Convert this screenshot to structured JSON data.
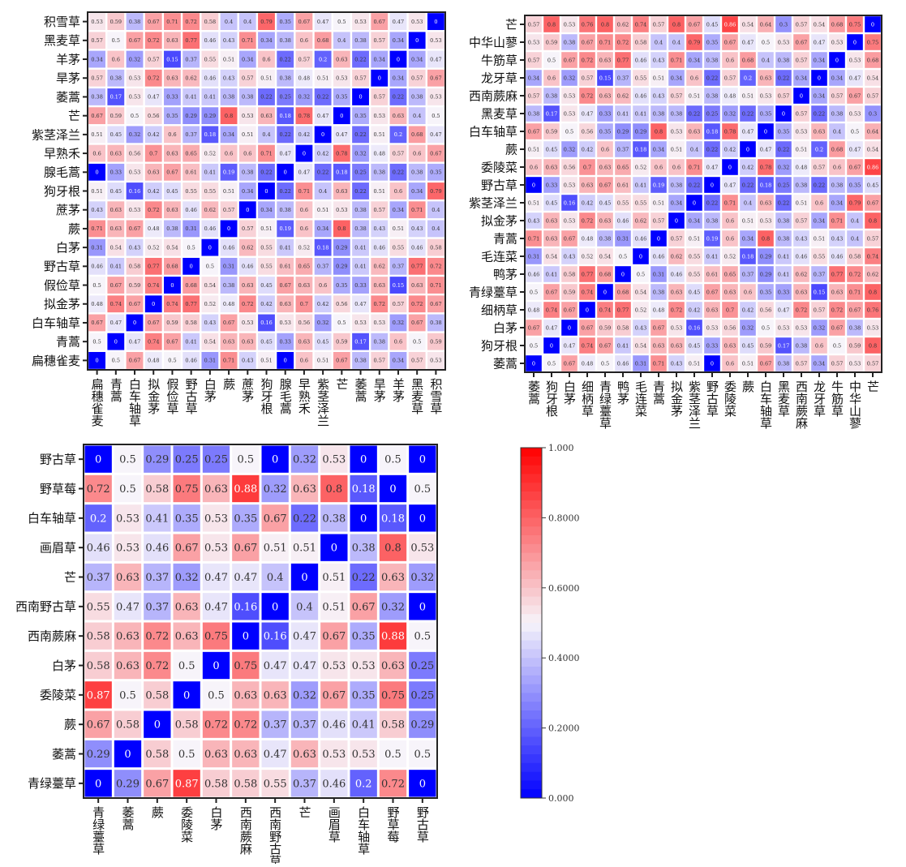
{
  "chart_data": [
    {
      "type": "heatmap",
      "title": "",
      "rows": [
        "积雪草",
        "黑麦草",
        "羊茅",
        "旱茅",
        "萎蒿",
        "芒",
        "紫茎泽兰",
        "早熟禾",
        "腺毛蒿",
        "狗牙根",
        "蔗茅",
        "蕨",
        "白茅",
        "野古草",
        "假俭草",
        "拟金茅",
        "白车轴草",
        "青蒿",
        "扁穗雀麦"
      ],
      "columns": [
        "扁穗雀麦",
        "青蒿",
        "白车轴草",
        "拟金茅",
        "假俭草",
        "野古草",
        "白茅",
        "蕨",
        "蔗茅",
        "狗牙根",
        "腺毛蒿",
        "早熟禾",
        "紫茎泽兰",
        "芒",
        "萎蒿",
        "旱茅",
        "羊茅",
        "黑麦草",
        "积雪草"
      ],
      "values": [
        [
          0.53,
          0.59,
          0.38,
          0.67,
          0.71,
          0.72,
          0.58,
          0.4,
          0.4,
          0.79,
          0.35,
          0.67,
          0.47,
          0.5,
          0.53,
          0.67,
          0.47,
          0.53,
          0
        ],
        [
          0.57,
          0.5,
          0.67,
          0.72,
          0.63,
          0.77,
          0.46,
          0.43,
          0.71,
          0.34,
          0.38,
          0.6,
          0.68,
          0.4,
          0.38,
          0.57,
          0.34,
          0,
          0.53
        ],
        [
          0.34,
          0.6,
          0.32,
          0.57,
          0.15,
          0.37,
          0.55,
          0.51,
          0.34,
          0.6,
          0.22,
          0.57,
          0.2,
          0.63,
          0.22,
          0.34,
          0,
          0.34,
          0.47
        ],
        [
          0.57,
          0.38,
          0.53,
          0.72,
          0.63,
          0.62,
          0.46,
          0.43,
          0.57,
          0.51,
          0.38,
          0.48,
          0.51,
          0.53,
          0.57,
          0,
          0.34,
          0.57,
          0.67
        ],
        [
          0.38,
          0.17,
          0.53,
          0.47,
          0.33,
          0.41,
          0.41,
          0.38,
          0.38,
          0.22,
          0.25,
          0.32,
          0.22,
          0.35,
          0,
          0.57,
          0.22,
          0.38,
          0.53
        ],
        [
          0.67,
          0.59,
          0.5,
          0.56,
          0.35,
          0.29,
          0.29,
          0.8,
          0.53,
          0.63,
          0.18,
          0.78,
          0.47,
          0,
          0.35,
          0.53,
          0.63,
          0.4,
          0.5
        ],
        [
          0.51,
          0.45,
          0.32,
          0.42,
          0.6,
          0.37,
          0.18,
          0.34,
          0.51,
          0.4,
          0.22,
          0.42,
          0,
          0.47,
          0.22,
          0.51,
          0.2,
          0.68,
          0.47
        ],
        [
          0.6,
          0.63,
          0.56,
          0.7,
          0.63,
          0.65,
          0.52,
          0.6,
          0.6,
          0.71,
          0.47,
          0,
          0.42,
          0.78,
          0.32,
          0.48,
          0.57,
          0.6,
          0.67
        ],
        [
          0,
          0.33,
          0.53,
          0.63,
          0.67,
          0.61,
          0.41,
          0.19,
          0.38,
          0.22,
          0,
          0.47,
          0.22,
          0.18,
          0.25,
          0.38,
          0.22,
          0.38,
          0.35
        ],
        [
          0.51,
          0.45,
          0.16,
          0.42,
          0.45,
          0.55,
          0.55,
          0.51,
          0.34,
          0,
          0.22,
          0.71,
          0.4,
          0.63,
          0.22,
          0.51,
          0.6,
          0.34,
          0.79
        ],
        [
          0.43,
          0.63,
          0.53,
          0.72,
          0.63,
          0.46,
          0.62,
          0.57,
          0,
          0.34,
          0.38,
          0.6,
          0.51,
          0.53,
          0.38,
          0.57,
          0.34,
          0.71,
          0.4
        ],
        [
          0.71,
          0.63,
          0.67,
          0.48,
          0.38,
          0.31,
          0.46,
          0,
          0.57,
          0.51,
          0.19,
          0.6,
          0.34,
          0.8,
          0.38,
          0.43,
          0.51,
          0.43,
          0.4
        ],
        [
          0.31,
          0.54,
          0.43,
          0.52,
          0.54,
          0.5,
          0,
          0.46,
          0.62,
          0.55,
          0.41,
          0.52,
          0.18,
          0.29,
          0.41,
          0.46,
          0.55,
          0.46,
          0.58
        ],
        [
          0.46,
          0.41,
          0.58,
          0.77,
          0.68,
          0,
          0.5,
          0.31,
          0.46,
          0.55,
          0.61,
          0.65,
          0.37,
          0.29,
          0.41,
          0.62,
          0.37,
          0.77,
          0.72
        ],
        [
          0.5,
          0.67,
          0.59,
          0.74,
          0,
          0.68,
          0.54,
          0.38,
          0.63,
          0.45,
          0.67,
          0.63,
          0.6,
          0.35,
          0.33,
          0.63,
          0.15,
          0.63,
          0.71
        ],
        [
          0.48,
          0.74,
          0.67,
          0,
          0.74,
          0.77,
          0.52,
          0.48,
          0.72,
          0.42,
          0.63,
          0.7,
          0.42,
          0.56,
          0.47,
          0.72,
          0.57,
          0.72,
          0.67
        ],
        [
          0.67,
          0.47,
          0,
          0.67,
          0.59,
          0.58,
          0.43,
          0.67,
          0.53,
          0.16,
          0.53,
          0.56,
          0.32,
          0.5,
          0.53,
          0.53,
          0.32,
          0.67,
          0.38
        ],
        [
          0.5,
          0,
          0.47,
          0.74,
          0.67,
          0.41,
          0.54,
          0.63,
          0.63,
          0.45,
          0.33,
          0.63,
          0.45,
          0.59,
          0.17,
          0.38,
          0.6,
          0.5,
          0.59
        ],
        [
          0,
          0.5,
          0.67,
          0.48,
          0.5,
          0.46,
          0.31,
          0.71,
          0.43,
          0.51,
          0,
          0.6,
          0.51,
          0.67,
          0.38,
          0.57,
          0.34,
          0.57,
          0.53
        ]
      ],
      "vmin": 0,
      "vmax": 1,
      "colormap": "bwr",
      "annotated": true
    },
    {
      "type": "heatmap",
      "title": "",
      "rows": [
        "芒",
        "中华山蓼",
        "牛筋草",
        "龙牙草",
        "西南蕨麻",
        "黑麦草",
        "白车轴草",
        "蕨",
        "委陵菜",
        "野古草",
        "紫茎泽兰",
        "拟金茅",
        "青蒿",
        "毛连菜",
        "鸭茅",
        "青绿薹草",
        "细柄草",
        "白茅",
        "狗牙根",
        "萎蒿"
      ],
      "columns": [
        "萎蒿",
        "狗牙根",
        "白茅",
        "细柄草",
        "青绿薹草",
        "鸭茅",
        "毛连菜",
        "青蒿",
        "拟金茅",
        "紫茎泽兰",
        "野古草",
        "委陵菜",
        "蕨",
        "白车轴草",
        "黑麦草",
        "西南蕨麻",
        "龙牙草",
        "牛筋草",
        "中华山蓼",
        "芒"
      ],
      "values": [
        [
          0.57,
          0.8,
          0.53,
          0.76,
          0.8,
          0.62,
          0.74,
          0.57,
          0.8,
          0.67,
          0.45,
          0.86,
          0.54,
          0.64,
          0.3,
          0.57,
          0.54,
          0.68,
          0.75,
          0
        ],
        [
          0.53,
          0.59,
          0.38,
          0.67,
          0.71,
          0.72,
          0.58,
          0.4,
          0.4,
          0.79,
          0.35,
          0.67,
          0.47,
          0.5,
          0.53,
          0.67,
          0.47,
          0.53,
          0,
          0.75
        ],
        [
          0.57,
          0.5,
          0.67,
          0.72,
          0.63,
          0.77,
          0.46,
          0.43,
          0.71,
          0.34,
          0.38,
          0.6,
          0.68,
          0.4,
          0.38,
          0.57,
          0.34,
          0,
          0.53,
          0.68
        ],
        [
          0.34,
          0.6,
          0.32,
          0.57,
          0.15,
          0.37,
          0.55,
          0.51,
          0.34,
          0.6,
          0.22,
          0.57,
          0.2,
          0.63,
          0.22,
          0.34,
          0,
          0.34,
          0.47,
          0.54
        ],
        [
          0.57,
          0.38,
          0.53,
          0.72,
          0.63,
          0.62,
          0.46,
          0.43,
          0.57,
          0.51,
          0.38,
          0.48,
          0.51,
          0.53,
          0.57,
          0,
          0.34,
          0.57,
          0.67,
          0.57
        ],
        [
          0.38,
          0.17,
          0.53,
          0.47,
          0.33,
          0.41,
          0.41,
          0.38,
          0.38,
          0.22,
          0.25,
          0.32,
          0.22,
          0.35,
          0,
          0.57,
          0.22,
          0.38,
          0.53,
          0.3
        ],
        [
          0.67,
          0.59,
          0.5,
          0.56,
          0.35,
          0.29,
          0.29,
          0.8,
          0.53,
          0.63,
          0.18,
          0.78,
          0.47,
          0,
          0.35,
          0.53,
          0.63,
          0.4,
          0.5,
          0.64
        ],
        [
          0.51,
          0.45,
          0.32,
          0.42,
          0.6,
          0.37,
          0.18,
          0.34,
          0.51,
          0.4,
          0.22,
          0.42,
          0,
          0.47,
          0.22,
          0.51,
          0.2,
          0.68,
          0.47,
          0.54
        ],
        [
          0.6,
          0.63,
          0.56,
          0.7,
          0.63,
          0.65,
          0.52,
          0.6,
          0.6,
          0.71,
          0.47,
          0,
          0.42,
          0.78,
          0.32,
          0.48,
          0.57,
          0.6,
          0.67,
          0.86
        ],
        [
          0,
          0.33,
          0.53,
          0.63,
          0.67,
          0.61,
          0.41,
          0.19,
          0.38,
          0.22,
          0,
          0.47,
          0.22,
          0.18,
          0.25,
          0.38,
          0.22,
          0.38,
          0.35,
          0.45
        ],
        [
          0.51,
          0.45,
          0.16,
          0.42,
          0.45,
          0.55,
          0.55,
          0.51,
          0.34,
          0,
          0.22,
          0.71,
          0.4,
          0.63,
          0.22,
          0.51,
          0.6,
          0.34,
          0.79,
          0.67
        ],
        [
          0.43,
          0.63,
          0.53,
          0.72,
          0.63,
          0.46,
          0.62,
          0.57,
          0,
          0.34,
          0.38,
          0.6,
          0.51,
          0.53,
          0.38,
          0.57,
          0.34,
          0.71,
          0.4,
          0.8
        ],
        [
          0.71,
          0.63,
          0.67,
          0.48,
          0.38,
          0.31,
          0.46,
          0,
          0.57,
          0.51,
          0.19,
          0.6,
          0.34,
          0.8,
          0.38,
          0.43,
          0.51,
          0.43,
          0.4,
          0.57
        ],
        [
          0.31,
          0.54,
          0.43,
          0.52,
          0.54,
          0.5,
          0,
          0.46,
          0.62,
          0.55,
          0.41,
          0.52,
          0.18,
          0.29,
          0.41,
          0.46,
          0.55,
          0.46,
          0.58,
          0.74
        ],
        [
          0.46,
          0.41,
          0.58,
          0.77,
          0.68,
          0,
          0.5,
          0.31,
          0.46,
          0.55,
          0.61,
          0.65,
          0.37,
          0.29,
          0.41,
          0.62,
          0.37,
          0.77,
          0.72,
          0.62
        ],
        [
          0.5,
          0.67,
          0.59,
          0.74,
          0,
          0.68,
          0.54,
          0.38,
          0.63,
          0.45,
          0.67,
          0.63,
          0.6,
          0.35,
          0.33,
          0.63,
          0.15,
          0.63,
          0.71,
          0.8
        ],
        [
          0.48,
          0.74,
          0.67,
          0,
          0.74,
          0.77,
          0.52,
          0.48,
          0.72,
          0.42,
          0.63,
          0.7,
          0.42,
          0.56,
          0.47,
          0.72,
          0.57,
          0.72,
          0.67,
          0.76
        ],
        [
          0.67,
          0.47,
          0,
          0.67,
          0.59,
          0.58,
          0.43,
          0.67,
          0.53,
          0.16,
          0.53,
          0.56,
          0.32,
          0.5,
          0.53,
          0.53,
          0.32,
          0.67,
          0.38,
          0.53
        ],
        [
          0.5,
          0,
          0.47,
          0.74,
          0.67,
          0.41,
          0.54,
          0.63,
          0.63,
          0.45,
          0.33,
          0.63,
          0.45,
          0.59,
          0.17,
          0.38,
          0.6,
          0.5,
          0.59,
          0.8
        ],
        [
          0,
          0.5,
          0.67,
          0.48,
          0.5,
          0.46,
          0.31,
          0.71,
          0.43,
          0.51,
          0,
          0.6,
          0.51,
          0.67,
          0.38,
          0.57,
          0.34,
          0.57,
          0.53,
          0.57
        ]
      ],
      "vmin": 0,
      "vmax": 1,
      "colormap": "bwr",
      "annotated": true
    },
    {
      "type": "heatmap",
      "title": "",
      "rows": [
        "野古草",
        "野草莓",
        "白车轴草",
        "画眉草",
        "芒",
        "西南野古草",
        "西南蕨麻",
        "白茅",
        "委陵菜",
        "蕨",
        "萎蒿",
        "青绿薹草"
      ],
      "columns": [
        "青绿薹草",
        "萎蒿",
        "蕨",
        "委陵菜",
        "白茅",
        "西南蕨麻",
        "西南野古草",
        "芒",
        "画眉草",
        "白车轴草",
        "野草莓",
        "野古草"
      ],
      "values": [
        [
          0,
          0.5,
          0.29,
          0.25,
          0.25,
          0.5,
          0,
          0.32,
          0.53,
          0,
          0.5,
          0
        ],
        [
          0.72,
          0.5,
          0.58,
          0.75,
          0.63,
          0.88,
          0.32,
          0.63,
          0.8,
          0.18,
          0,
          0.5
        ],
        [
          0.2,
          0.53,
          0.41,
          0.35,
          0.53,
          0.35,
          0.67,
          0.22,
          0.38,
          0,
          0.18,
          0
        ],
        [
          0.46,
          0.53,
          0.46,
          0.67,
          0.53,
          0.67,
          0.51,
          0.51,
          0,
          0.38,
          0.8,
          0.53
        ],
        [
          0.37,
          0.63,
          0.37,
          0.32,
          0.47,
          0.47,
          0.4,
          0,
          0.51,
          0.22,
          0.63,
          0.32
        ],
        [
          0.55,
          0.47,
          0.37,
          0.63,
          0.47,
          0.16,
          0,
          0.4,
          0.51,
          0.67,
          0.32,
          0
        ],
        [
          0.58,
          0.63,
          0.72,
          0.63,
          0.75,
          0,
          0.16,
          0.47,
          0.67,
          0.35,
          0.88,
          0.5
        ],
        [
          0.58,
          0.63,
          0.72,
          0.5,
          0,
          0.75,
          0.47,
          0.47,
          0.53,
          0.53,
          0.63,
          0.25
        ],
        [
          0.87,
          0.5,
          0.58,
          0,
          0.5,
          0.63,
          0.63,
          0.32,
          0.67,
          0.35,
          0.75,
          0.25
        ],
        [
          0.67,
          0.58,
          0,
          0.58,
          0.72,
          0.72,
          0.37,
          0.37,
          0.46,
          0.41,
          0.58,
          0.29
        ],
        [
          0.29,
          0,
          0.58,
          0.5,
          0.63,
          0.63,
          0.47,
          0.63,
          0.53,
          0.53,
          0.5,
          0.5
        ],
        [
          0,
          0.29,
          0.67,
          0.87,
          0.58,
          0.58,
          0.55,
          0.37,
          0.46,
          0.2,
          0.72,
          0
        ]
      ],
      "vmin": 0,
      "vmax": 1,
      "colormap": "bwr",
      "annotated": true
    }
  ],
  "colorbar": {
    "vmin": 0,
    "vmax": 1,
    "tick_values": [
      1.0,
      0.8,
      0.6,
      0.4,
      0.2,
      0.0
    ],
    "tick_labels": [
      "1.000",
      "0.8000",
      "0.6000",
      "0.4000",
      "0.2000",
      "0.000"
    ],
    "colors": {
      "low": "#0000ff",
      "mid": "#f7f4fa",
      "high": "#ff0000"
    }
  }
}
